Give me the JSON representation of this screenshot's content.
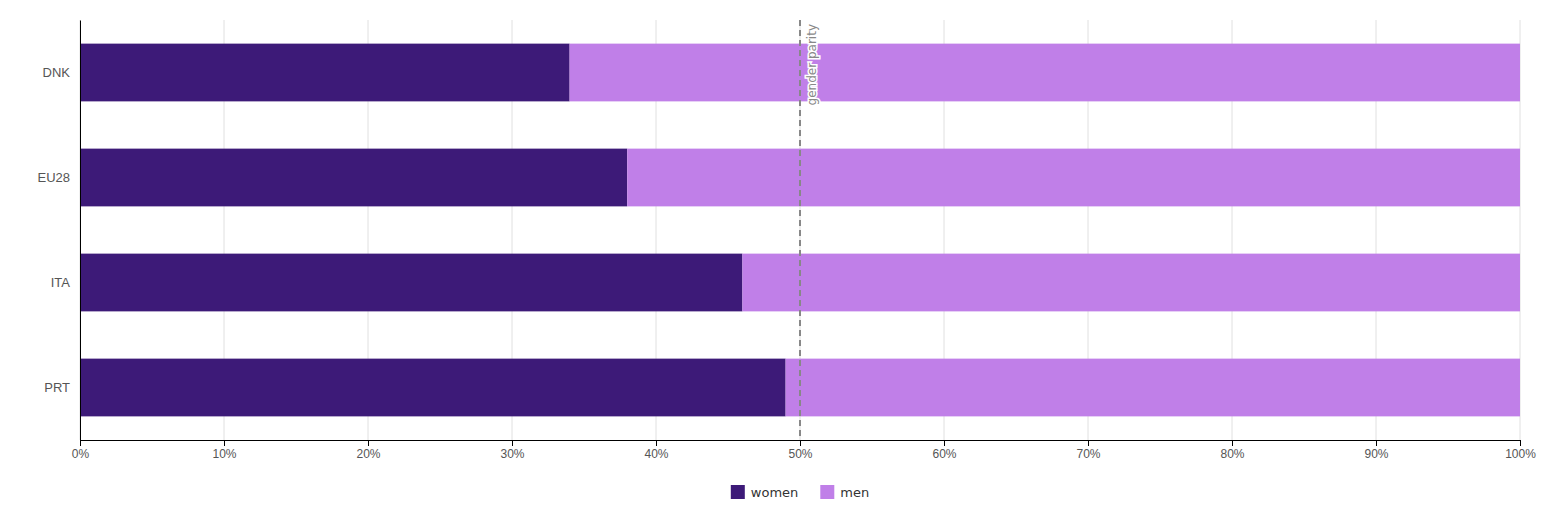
{
  "chart_data": {
    "type": "bar",
    "orientation": "horizontal",
    "stacked": true,
    "categories": [
      "DNK",
      "EU28",
      "ITA",
      "PRT"
    ],
    "series": [
      {
        "name": "women",
        "color": "#3d1a78",
        "values": [
          34,
          38,
          46,
          49
        ]
      },
      {
        "name": "men",
        "color": "#c07fe8",
        "values": [
          66,
          62,
          54,
          51
        ]
      }
    ],
    "xlim": [
      0,
      100
    ],
    "xticks": [
      {
        "value": 0,
        "label": "0%"
      },
      {
        "value": 10,
        "label": "10%"
      },
      {
        "value": 20,
        "label": "20%"
      },
      {
        "value": 30,
        "label": "30%"
      },
      {
        "value": 40,
        "label": "40%"
      },
      {
        "value": 50,
        "label": "50%"
      },
      {
        "value": 60,
        "label": "60%"
      },
      {
        "value": 70,
        "label": "70%"
      },
      {
        "value": 80,
        "label": "80%"
      },
      {
        "value": 90,
        "label": "90%"
      },
      {
        "value": 100,
        "label": "100%"
      }
    ],
    "grid": true,
    "legend": "bottom",
    "annotations": [
      {
        "text": "gender parity",
        "x": 50,
        "color": "#888888",
        "line_style": "dashed"
      }
    ]
  }
}
